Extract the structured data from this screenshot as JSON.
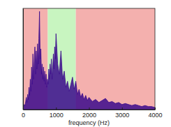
{
  "chart_data": {
    "type": "area",
    "x_label": "frequency (Hz)",
    "color": "#3b0b8c",
    "regions": [
      {
        "start": 0,
        "end": 750,
        "color": "#f4b0ae"
      },
      {
        "start": 750,
        "end": 1600,
        "color": "#c8f5c0"
      },
      {
        "start": 1600,
        "end": 4000,
        "color": "#f4b0ae"
      }
    ],
    "x": [
      0,
      20,
      40,
      60,
      80,
      100,
      120,
      140,
      160,
      180,
      200,
      220,
      240,
      260,
      280,
      300,
      320,
      340,
      360,
      380,
      400,
      420,
      440,
      460,
      480,
      500,
      520,
      540,
      560,
      580,
      600,
      620,
      640,
      660,
      680,
      700,
      720,
      740,
      760,
      780,
      800,
      820,
      840,
      860,
      880,
      900,
      920,
      940,
      960,
      980,
      1000,
      1050,
      1100,
      1150,
      1200,
      1250,
      1300,
      1350,
      1400,
      1450,
      1500,
      1550,
      1600,
      1650,
      1700,
      1750,
      1800,
      1850,
      1900,
      1950,
      2000,
      2100,
      2200,
      2300,
      2400,
      2500,
      2600,
      2700,
      2800,
      2900,
      3000,
      3100,
      3200,
      3300,
      3400,
      3500,
      3600,
      3700,
      3800,
      3900,
      4000
    ],
    "values": [
      0.02,
      0.03,
      0.05,
      0.04,
      0.08,
      0.12,
      0.07,
      0.15,
      0.1,
      0.22,
      0.14,
      0.3,
      0.18,
      0.42,
      0.25,
      0.55,
      0.3,
      0.48,
      0.62,
      0.35,
      0.58,
      0.4,
      0.65,
      0.45,
      0.7,
      0.97,
      0.5,
      0.6,
      0.35,
      0.45,
      0.3,
      0.42,
      0.28,
      0.38,
      0.25,
      0.35,
      0.22,
      0.3,
      0.25,
      0.4,
      0.3,
      0.45,
      0.35,
      0.5,
      0.3,
      0.42,
      0.55,
      0.4,
      0.62,
      0.5,
      0.75,
      0.45,
      0.35,
      0.58,
      0.3,
      0.38,
      0.22,
      0.28,
      0.18,
      0.25,
      0.32,
      0.2,
      0.28,
      0.15,
      0.2,
      0.12,
      0.16,
      0.1,
      0.14,
      0.09,
      0.12,
      0.08,
      0.1,
      0.07,
      0.09,
      0.11,
      0.07,
      0.08,
      0.06,
      0.07,
      0.05,
      0.06,
      0.05,
      0.04,
      0.05,
      0.04,
      0.03,
      0.04,
      0.03,
      0.03,
      0.02
    ],
    "xlim": [
      0,
      4000
    ],
    "xticks": [
      0,
      1000,
      2000,
      3000,
      4000
    ],
    "ylim": [
      0,
      1
    ],
    "tick_labels": "x"
  }
}
